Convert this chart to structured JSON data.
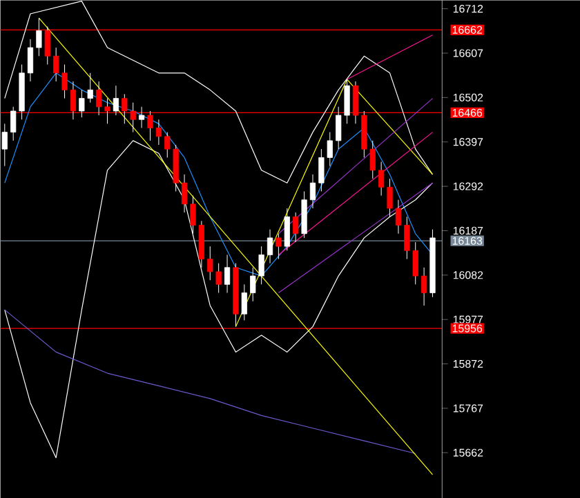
{
  "chart_data": {
    "type": "candlestick",
    "categories": [
      null,
      null,
      null,
      null,
      null,
      null,
      null,
      null,
      null,
      null,
      null,
      null,
      null,
      null,
      null,
      null,
      null,
      null,
      null,
      null,
      null,
      null,
      null,
      null,
      null,
      null,
      null,
      null,
      null,
      null,
      null,
      null,
      null,
      null,
      null,
      null,
      null,
      null,
      null,
      null,
      null,
      null,
      null,
      null,
      null,
      null,
      null,
      null,
      null,
      null,
      null
    ],
    "ohlc": [
      [
        16380,
        16440,
        16340,
        16420
      ],
      [
        16420,
        16480,
        16400,
        16470
      ],
      [
        16470,
        16580,
        16450,
        16560
      ],
      [
        16560,
        16640,
        16540,
        16620
      ],
      [
        16620,
        16690,
        16600,
        16660
      ],
      [
        16660,
        16670,
        16580,
        16600
      ],
      [
        16600,
        16620,
        16540,
        16560
      ],
      [
        16560,
        16580,
        16500,
        16520
      ],
      [
        16520,
        16540,
        16450,
        16470
      ],
      [
        16470,
        16520,
        16455,
        16500
      ],
      [
        16500,
        16560,
        16490,
        16520
      ],
      [
        16520,
        16540,
        16460,
        16480
      ],
      [
        16480,
        16500,
        16440,
        16470
      ],
      [
        16470,
        16530,
        16460,
        16500
      ],
      [
        16500,
        16510,
        16440,
        16470
      ],
      [
        16470,
        16490,
        16420,
        16450
      ],
      [
        16450,
        16480,
        16430,
        16460
      ],
      [
        16460,
        16470,
        16400,
        16430
      ],
      [
        16430,
        16450,
        16390,
        16410
      ],
      [
        16410,
        16420,
        16360,
        16380
      ],
      [
        16380,
        16390,
        16280,
        16300
      ],
      [
        16300,
        16320,
        16230,
        16250
      ],
      [
        16250,
        16270,
        16180,
        16200
      ],
      [
        16200,
        16210,
        16100,
        16120
      ],
      [
        16120,
        16150,
        16070,
        16090
      ],
      [
        16090,
        16110,
        16040,
        16060
      ],
      [
        16060,
        16130,
        16040,
        16100
      ],
      [
        16100,
        16110,
        15960,
        15990
      ],
      [
        15990,
        16060,
        15975,
        16040
      ],
      [
        16040,
        16100,
        16020,
        16080
      ],
      [
        16080,
        16150,
        16060,
        16130
      ],
      [
        16130,
        16190,
        16110,
        16170
      ],
      [
        16170,
        16180,
        16120,
        16150
      ],
      [
        16150,
        16240,
        16140,
        16220
      ],
      [
        16220,
        16230,
        16160,
        16180
      ],
      [
        16180,
        16280,
        16170,
        16260
      ],
      [
        16260,
        16320,
        16240,
        16300
      ],
      [
        16300,
        16380,
        16280,
        16360
      ],
      [
        16360,
        16420,
        16340,
        16400
      ],
      [
        16400,
        16480,
        16380,
        16460
      ],
      [
        16460,
        16545,
        16440,
        16530
      ],
      [
        16530,
        16540,
        16440,
        16460
      ],
      [
        16460,
        16470,
        16360,
        16380
      ],
      [
        16380,
        16400,
        16310,
        16330
      ],
      [
        16330,
        16350,
        16270,
        16290
      ],
      [
        16290,
        16310,
        16220,
        16240
      ],
      [
        16240,
        16260,
        16180,
        16200
      ],
      [
        16200,
        16220,
        16120,
        16140
      ],
      [
        16140,
        16160,
        16060,
        16080
      ],
      [
        16080,
        16100,
        16010,
        16040
      ],
      [
        16040,
        16190,
        16030,
        16170
      ]
    ],
    "series": [
      {
        "type": "line",
        "color": "#1e90ff",
        "values": [
          16300,
          null,
          null,
          16480,
          null,
          null,
          16560,
          null,
          null,
          16520,
          null,
          null,
          16490,
          null,
          null,
          16470,
          null,
          null,
          16440,
          null,
          null,
          16360,
          null,
          null,
          16220,
          null,
          null,
          16100,
          null,
          null,
          16080,
          null,
          null,
          16150,
          null,
          null,
          16250,
          null,
          null,
          16380,
          null,
          null,
          16430,
          null,
          null,
          16320,
          null,
          null,
          16180,
          null,
          16130
        ]
      },
      {
        "type": "line",
        "color": "#ffffff",
        "values": [
          16500,
          null,
          null,
          16700,
          null,
          null,
          null,
          null,
          null,
          16730,
          null,
          null,
          16620,
          null,
          null,
          16590,
          null,
          null,
          16560,
          null,
          null,
          16560,
          null,
          null,
          16520,
          null,
          null,
          16470,
          null,
          null,
          16330,
          null,
          null,
          16300,
          null,
          null,
          16420,
          null,
          null,
          16520,
          null,
          null,
          16600,
          null,
          null,
          16560,
          null,
          null,
          16380,
          null,
          16320
        ]
      },
      {
        "type": "line",
        "color": "#ffffff",
        "values": [
          16000,
          null,
          null,
          15780,
          null,
          null,
          15650,
          null,
          null,
          16000,
          null,
          null,
          16330,
          null,
          null,
          16400,
          null,
          null,
          16370,
          null,
          null,
          16260,
          null,
          null,
          16010,
          null,
          null,
          15900,
          null,
          null,
          15940,
          null,
          null,
          15900,
          null,
          null,
          15960,
          null,
          null,
          16080,
          null,
          null,
          16170,
          null,
          null,
          16220,
          null,
          null,
          16260,
          null,
          16300
        ]
      },
      {
        "type": "line",
        "color": "#6a5acd",
        "values": [
          16000,
          null,
          null,
          null,
          null,
          null,
          15900,
          null,
          null,
          null,
          null,
          null,
          15850,
          null,
          null,
          null,
          null,
          null,
          15820,
          null,
          null,
          null,
          null,
          null,
          15790,
          null,
          null,
          null,
          null,
          null,
          15750,
          null,
          null,
          null,
          null,
          null,
          15720,
          null,
          null,
          null,
          null,
          null,
          15690,
          null,
          null,
          null,
          null,
          null,
          15660,
          null,
          null
        ]
      },
      {
        "type": "line",
        "color": "#ffff00",
        "values": [
          null,
          null,
          null,
          null,
          16690,
          null,
          null,
          null,
          null,
          null,
          null,
          null,
          null,
          null,
          null,
          null,
          null,
          null,
          null,
          null,
          null,
          null,
          null,
          null,
          null,
          null,
          null,
          null,
          null,
          null,
          null,
          null,
          null,
          null,
          null,
          null,
          null,
          null,
          null,
          null,
          null,
          null,
          null,
          null,
          null,
          null,
          null,
          null,
          null,
          null,
          15610
        ]
      },
      {
        "type": "line",
        "color": "#ffff00",
        "values": [
          null,
          null,
          null,
          null,
          null,
          null,
          null,
          null,
          null,
          null,
          null,
          null,
          null,
          null,
          null,
          null,
          null,
          null,
          null,
          null,
          null,
          null,
          null,
          null,
          null,
          null,
          null,
          15960,
          null,
          null,
          null,
          null,
          null,
          null,
          null,
          null,
          null,
          null,
          null,
          null,
          16545,
          null,
          null,
          null,
          null,
          null,
          null,
          null,
          null,
          null,
          null
        ]
      },
      {
        "type": "line",
        "color": "#ffff00",
        "values": [
          null,
          null,
          null,
          null,
          null,
          null,
          null,
          null,
          null,
          null,
          null,
          null,
          null,
          null,
          null,
          null,
          null,
          null,
          null,
          null,
          null,
          null,
          null,
          null,
          null,
          null,
          null,
          null,
          null,
          null,
          null,
          null,
          null,
          null,
          null,
          null,
          null,
          null,
          null,
          null,
          16545,
          null,
          null,
          null,
          null,
          null,
          null,
          null,
          null,
          null,
          16320
        ]
      },
      {
        "type": "line",
        "color": "#ff1493",
        "values": [
          null,
          null,
          null,
          null,
          null,
          null,
          null,
          null,
          null,
          null,
          null,
          null,
          null,
          null,
          null,
          null,
          null,
          null,
          null,
          null,
          null,
          null,
          null,
          null,
          null,
          null,
          null,
          null,
          null,
          null,
          null,
          null,
          null,
          null,
          null,
          null,
          null,
          null,
          null,
          null,
          16545,
          null,
          null,
          null,
          null,
          null,
          null,
          null,
          null,
          null,
          16650
        ]
      },
      {
        "type": "line",
        "color": "#ff1493",
        "values": [
          null,
          null,
          null,
          null,
          null,
          null,
          null,
          null,
          null,
          null,
          null,
          null,
          null,
          null,
          null,
          null,
          null,
          null,
          null,
          null,
          null,
          null,
          null,
          null,
          null,
          null,
          null,
          null,
          null,
          null,
          null,
          null,
          16130,
          null,
          null,
          null,
          null,
          null,
          null,
          null,
          null,
          null,
          null,
          null,
          null,
          null,
          null,
          null,
          null,
          null,
          16420
        ]
      },
      {
        "type": "line",
        "color": "#9932cc",
        "values": [
          null,
          null,
          null,
          null,
          null,
          null,
          null,
          null,
          null,
          null,
          null,
          null,
          null,
          null,
          null,
          null,
          null,
          null,
          null,
          null,
          null,
          null,
          null,
          null,
          null,
          null,
          null,
          null,
          null,
          null,
          null,
          null,
          16180,
          null,
          null,
          null,
          null,
          null,
          null,
          null,
          null,
          null,
          null,
          null,
          null,
          null,
          null,
          null,
          null,
          null,
          16500
        ]
      },
      {
        "type": "line",
        "color": "#9932cc",
        "values": [
          null,
          null,
          null,
          null,
          null,
          null,
          null,
          null,
          null,
          null,
          null,
          null,
          null,
          null,
          null,
          null,
          null,
          null,
          null,
          null,
          null,
          null,
          null,
          null,
          null,
          null,
          null,
          null,
          null,
          null,
          null,
          null,
          16040,
          null,
          null,
          null,
          null,
          null,
          null,
          null,
          null,
          null,
          null,
          null,
          null,
          null,
          null,
          null,
          null,
          null,
          16300
        ]
      }
    ],
    "ylim": [
      15555,
      16732
    ],
    "yticks": [
      15662,
      15767,
      15872,
      15977,
      16082,
      16187,
      16292,
      16397,
      16502,
      16607,
      16712
    ],
    "ref_lines": [
      {
        "axis": "y",
        "value": 16662,
        "label": "16662",
        "color": "#ff0000"
      },
      {
        "axis": "y",
        "value": 16466,
        "label": "16466",
        "color": "#ff0000"
      },
      {
        "axis": "y",
        "value": 16163,
        "label": "16163",
        "color": "#778899"
      },
      {
        "axis": "y",
        "value": 15956,
        "label": "15956",
        "color": "#ff0000"
      }
    ]
  }
}
